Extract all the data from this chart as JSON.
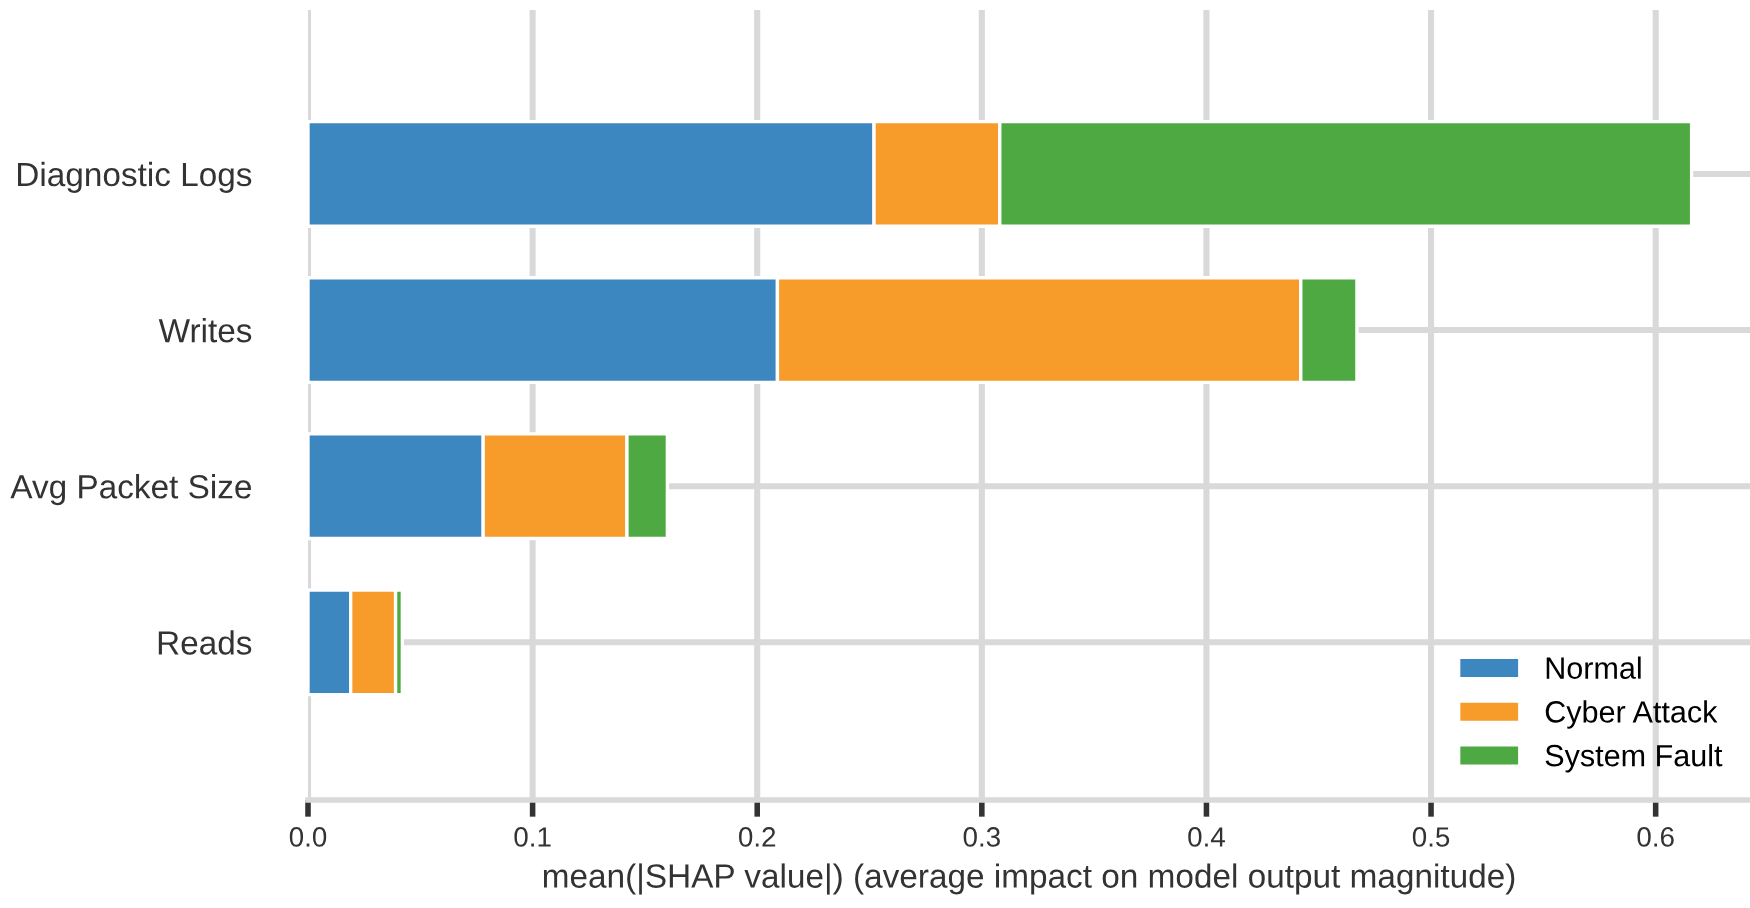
{
  "chart_data": {
    "type": "bar",
    "orientation": "horizontal",
    "stacked": true,
    "categories": [
      "Diagnostic Logs",
      "Writes",
      "Avg Packet Size",
      "Reads"
    ],
    "series": [
      {
        "name": "Normal",
        "color": "#3d87c0",
        "values": [
          0.252,
          0.209,
          0.078,
          0.019
        ]
      },
      {
        "name": "Cyber Attack",
        "color": "#f79b2b",
        "values": [
          0.056,
          0.233,
          0.064,
          0.02
        ]
      },
      {
        "name": "System Fault",
        "color": "#4fa942",
        "values": [
          0.308,
          0.025,
          0.018,
          0.003
        ]
      }
    ],
    "xlabel": "mean(|SHAP value|) (average impact on model output magnitude)",
    "xlim": [
      0,
      0.642
    ],
    "xticks": [
      {
        "value": 0,
        "label": "0.0"
      },
      0.1,
      0.2,
      0.3,
      0.4,
      0.5,
      0.6
    ],
    "grid": true,
    "legend": "bottom right"
  }
}
